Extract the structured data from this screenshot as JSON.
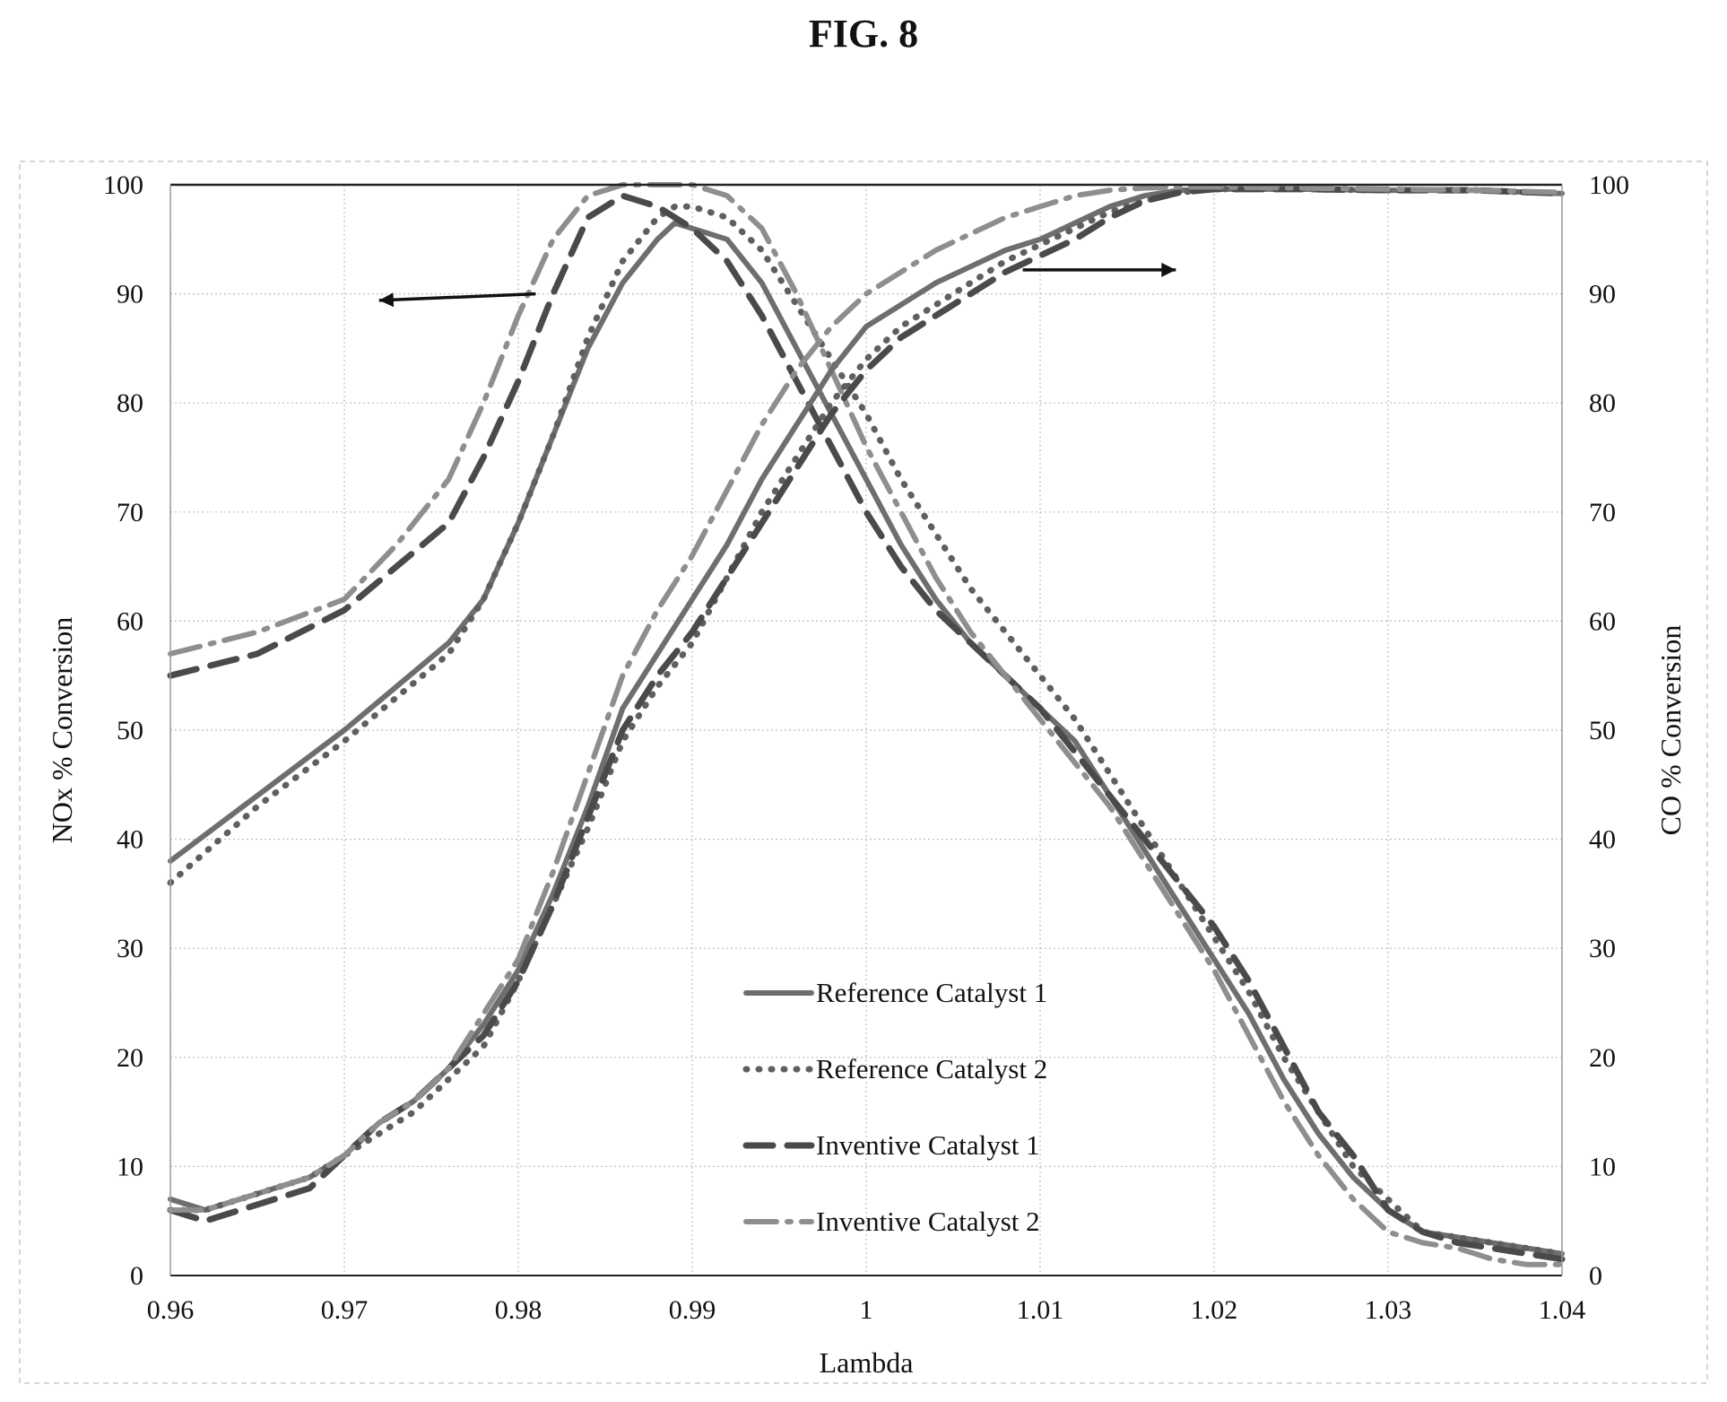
{
  "figure_label": "FIG. 8",
  "chart_data": {
    "type": "line",
    "title": "FIG. 8",
    "xlabel": "Lambda",
    "ylabel_left": "NOx % Conversion",
    "ylabel_right": "CO % Conversion",
    "xlim": [
      0.96,
      1.04
    ],
    "ylim": [
      0,
      100
    ],
    "xticks": [
      "0.96",
      "0.97",
      "0.98",
      "0.99",
      "1",
      "1.01",
      "1.02",
      "1.03",
      "1.04"
    ],
    "yticks": [
      "0",
      "10",
      "20",
      "30",
      "40",
      "50",
      "60",
      "70",
      "80",
      "90",
      "100"
    ],
    "grid": true,
    "legend_position": "bottom-center",
    "colors": {
      "reference_1": "#6e6e6e",
      "reference_2": "#5f5f5f",
      "inventive_1": "#4a4a4a",
      "inventive_2": "#8e8e8e",
      "grid": "#bdbdbd",
      "axis": "#222222"
    },
    "annotations": [
      {
        "label": "arrow-left-nox",
        "from": [
          0.981,
          90
        ],
        "to": [
          0.972,
          89.4
        ]
      },
      {
        "label": "arrow-right-co",
        "from": [
          1.009,
          92.2
        ],
        "to": [
          1.0178,
          92.2
        ]
      }
    ],
    "series": [
      {
        "name": "Reference Catalyst 1",
        "key": "reference_1",
        "style": "solid",
        "axis": "NOx",
        "x": [
          0.96,
          0.965,
          0.97,
          0.973,
          0.976,
          0.978,
          0.98,
          0.982,
          0.984,
          0.986,
          0.988,
          0.989,
          0.99,
          0.992,
          0.994,
          0.996,
          0.998,
          1.0,
          1.002,
          1.004,
          1.006,
          1.008,
          1.01,
          1.012,
          1.014,
          1.016,
          1.018,
          1.02,
          1.022,
          1.024,
          1.026,
          1.028,
          1.03,
          1.032,
          1.034,
          1.036,
          1.038,
          1.04
        ],
        "y": [
          38,
          44,
          50,
          54,
          58,
          62,
          69,
          77,
          85,
          91,
          95,
          96.5,
          96,
          95,
          91,
          85,
          79,
          73,
          67,
          62,
          58,
          55,
          52,
          49,
          44,
          39,
          34,
          29,
          24,
          18,
          13,
          9,
          6,
          4,
          3.5,
          3,
          2.5,
          2
        ]
      },
      {
        "name": "Reference Catalyst 2",
        "key": "reference_2",
        "style": "dotted",
        "axis": "NOx",
        "x": [
          0.96,
          0.965,
          0.97,
          0.973,
          0.976,
          0.978,
          0.98,
          0.982,
          0.984,
          0.986,
          0.988,
          0.989,
          0.99,
          0.992,
          0.994,
          0.996,
          0.998,
          1.0,
          1.002,
          1.004,
          1.006,
          1.008,
          1.01,
          1.012,
          1.014,
          1.016,
          1.018,
          1.02,
          1.022,
          1.024,
          1.026,
          1.028,
          1.03,
          1.032,
          1.034,
          1.036,
          1.038,
          1.04
        ],
        "y": [
          36,
          43,
          49,
          53,
          57,
          62,
          69,
          77,
          86,
          93,
          97,
          98,
          98,
          97,
          94,
          89,
          84,
          79,
          73,
          68,
          63,
          59,
          55,
          51,
          46,
          41,
          36,
          31,
          26,
          20,
          15,
          10,
          7,
          4,
          3.5,
          3,
          2.5,
          2
        ]
      },
      {
        "name": "Inventive Catalyst 1",
        "key": "inventive_1",
        "style": "dashed",
        "axis": "NOx",
        "x": [
          0.96,
          0.965,
          0.97,
          0.973,
          0.976,
          0.978,
          0.98,
          0.982,
          0.984,
          0.986,
          0.988,
          0.99,
          0.992,
          0.994,
          0.996,
          0.998,
          1.0,
          1.002,
          1.004,
          1.006,
          1.008,
          1.01,
          1.012,
          1.014,
          1.016,
          1.018,
          1.02,
          1.022,
          1.024,
          1.026,
          1.028,
          1.03,
          1.032,
          1.034,
          1.036,
          1.038,
          1.04
        ],
        "y": [
          55,
          57,
          61,
          65,
          69,
          75,
          82,
          90,
          97,
          99,
          98,
          96,
          93,
          88,
          82,
          76,
          70,
          65,
          61,
          58,
          55,
          52,
          48,
          44,
          40,
          36,
          32,
          27,
          21,
          15,
          11,
          6,
          4,
          3,
          2.5,
          2,
          1.5
        ]
      },
      {
        "name": "Inventive Catalyst 2",
        "key": "inventive_2",
        "style": "dashdot",
        "axis": "NOx",
        "x": [
          0.96,
          0.965,
          0.97,
          0.973,
          0.976,
          0.978,
          0.98,
          0.982,
          0.984,
          0.986,
          0.988,
          0.99,
          0.992,
          0.994,
          0.996,
          0.998,
          1.0,
          1.002,
          1.004,
          1.006,
          1.008,
          1.01,
          1.012,
          1.014,
          1.016,
          1.018,
          1.02,
          1.022,
          1.024,
          1.026,
          1.028,
          1.03,
          1.032,
          1.034,
          1.036,
          1.038,
          1.04
        ],
        "y": [
          57,
          59,
          62,
          67,
          73,
          80,
          88,
          95,
          99,
          100,
          100,
          100,
          99,
          96,
          90,
          83,
          76,
          70,
          64,
          59,
          55,
          51,
          47,
          43,
          38,
          33,
          28,
          22,
          16,
          11,
          7,
          4,
          3,
          2.5,
          1.5,
          1,
          1
        ]
      },
      {
        "name": "Reference Catalyst 1",
        "key": "reference_1",
        "style": "solid",
        "axis": "CO",
        "x": [
          0.96,
          0.962,
          0.964,
          0.966,
          0.968,
          0.97,
          0.972,
          0.974,
          0.976,
          0.978,
          0.98,
          0.982,
          0.984,
          0.986,
          0.988,
          0.99,
          0.992,
          0.994,
          0.996,
          0.998,
          1.0,
          1.002,
          1.004,
          1.006,
          1.008,
          1.01,
          1.012,
          1.014,
          1.016,
          1.018,
          1.02,
          1.025,
          1.03,
          1.035,
          1.04
        ],
        "y": [
          7,
          6,
          7,
          8,
          9,
          11,
          14,
          16,
          19,
          23,
          28,
          35,
          43,
          52,
          57,
          62,
          67,
          73,
          78,
          83,
          87,
          89,
          91,
          92.5,
          94,
          95,
          96.5,
          98,
          99,
          99.5,
          99.6,
          99.6,
          99.5,
          99.5,
          99.2
        ]
      },
      {
        "name": "Reference Catalyst 2",
        "key": "reference_2",
        "style": "dotted",
        "axis": "CO",
        "x": [
          0.96,
          0.962,
          0.964,
          0.966,
          0.968,
          0.97,
          0.972,
          0.974,
          0.976,
          0.978,
          0.98,
          0.982,
          0.984,
          0.986,
          0.988,
          0.99,
          0.992,
          0.994,
          0.996,
          0.998,
          1.0,
          1.002,
          1.004,
          1.006,
          1.008,
          1.01,
          1.012,
          1.014,
          1.016,
          1.018,
          1.02,
          1.025,
          1.03,
          1.035,
          1.04
        ],
        "y": [
          6,
          6,
          7,
          8,
          9,
          11,
          13,
          15,
          18,
          21,
          27,
          34,
          41,
          49,
          54,
          58,
          64,
          70,
          75,
          80,
          84,
          87,
          89,
          91,
          93,
          94.5,
          96,
          97.5,
          98.5,
          99.3,
          99.6,
          99.6,
          99.5,
          99.5,
          99.2
        ]
      },
      {
        "name": "Inventive Catalyst 1",
        "key": "inventive_1",
        "style": "dashed",
        "axis": "CO",
        "x": [
          0.96,
          0.962,
          0.964,
          0.966,
          0.968,
          0.97,
          0.972,
          0.974,
          0.976,
          0.978,
          0.98,
          0.982,
          0.984,
          0.986,
          0.988,
          0.99,
          0.992,
          0.994,
          0.996,
          0.998,
          1.0,
          1.002,
          1.004,
          1.006,
          1.008,
          1.01,
          1.012,
          1.014,
          1.016,
          1.018,
          1.02,
          1.025,
          1.03,
          1.035,
          1.04
        ],
        "y": [
          6,
          5,
          6,
          7,
          8,
          11,
          14,
          16,
          19,
          22,
          27,
          34,
          42,
          50,
          55,
          59,
          64,
          69,
          74,
          79,
          83,
          86,
          88,
          90,
          92,
          93.5,
          95,
          97,
          98.5,
          99.3,
          99.6,
          99.6,
          99.5,
          99.5,
          99.2
        ]
      },
      {
        "name": "Inventive Catalyst 2",
        "key": "inventive_2",
        "style": "dashdot",
        "axis": "CO",
        "x": [
          0.96,
          0.962,
          0.964,
          0.966,
          0.968,
          0.97,
          0.972,
          0.974,
          0.976,
          0.978,
          0.98,
          0.982,
          0.984,
          0.986,
          0.988,
          0.99,
          0.992,
          0.994,
          0.996,
          0.998,
          1.0,
          1.002,
          1.004,
          1.006,
          1.008,
          1.01,
          1.012,
          1.014,
          1.016,
          1.018,
          1.02,
          1.025,
          1.03,
          1.035,
          1.04
        ],
        "y": [
          6,
          6,
          7,
          8,
          9,
          11,
          14,
          16,
          19,
          24,
          29,
          37,
          46,
          55,
          61,
          66,
          72,
          78,
          83,
          87,
          90,
          92,
          94,
          95.5,
          97,
          98,
          99,
          99.5,
          99.7,
          99.8,
          99.8,
          99.7,
          99.6,
          99.5,
          99.3
        ]
      }
    ]
  }
}
